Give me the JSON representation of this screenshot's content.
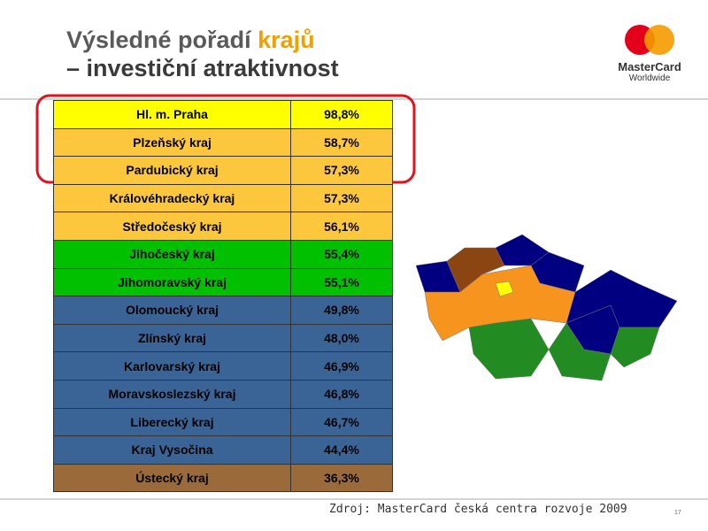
{
  "header": {
    "title_part1": "Výsledné pořadí ",
    "title_highlight": "krajů",
    "title_line2": "– investiční atraktivnost"
  },
  "logo": {
    "name": "MasterCard",
    "tagline": "Worldwide"
  },
  "table": {
    "rows": [
      [
        "Hl. m. Praha",
        "98,8%"
      ],
      [
        "Plzeňský kraj",
        "58,7%"
      ],
      [
        "Pardubický kraj",
        "57,3%"
      ],
      [
        "Královéhradecký kraj",
        "57,3%"
      ],
      [
        "Středočeský kraj",
        "56,1%"
      ],
      [
        "Jihočeský kraj",
        "55,4%"
      ],
      [
        "Jihomoravský kraj",
        "55,1%"
      ],
      [
        "Olomoucký kraj",
        "49,8%"
      ],
      [
        "Zlínský kraj",
        "48,0%"
      ],
      [
        "Karlovarský kraj",
        "46,9%"
      ],
      [
        "Moravskoslezský kraj",
        "46,8%"
      ],
      [
        "Liberecký kraj",
        "46,7%"
      ],
      [
        "Kraj Vysočina",
        "44,4%"
      ],
      [
        "Ústecký kraj",
        "36,3%"
      ]
    ],
    "row_colors": [
      "#ffff00",
      "#fcc73c",
      "#fcc73c",
      "#fcc73c",
      "#fcc73c",
      "#00c000",
      "#00c000",
      "#3b6496",
      "#3b6496",
      "#3b6496",
      "#3b6496",
      "#3b6496",
      "#3b6496",
      "#9a6a3a"
    ]
  },
  "footer": {
    "source": "Zdroj: MasterCard česká centra rozvoje 2009",
    "page": "17"
  }
}
